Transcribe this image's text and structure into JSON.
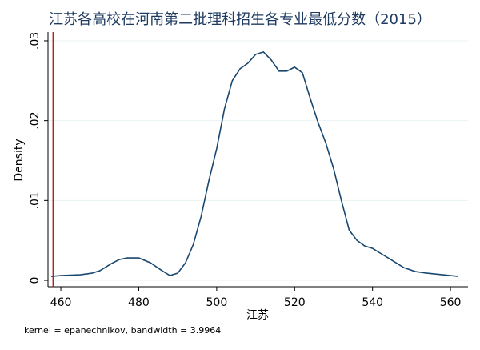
{
  "chart_data": {
    "type": "line",
    "title": "江苏各高校在河南第二批理科招生各专业最低分数（2015）",
    "xlabel": "江苏",
    "ylabel": "Density",
    "note": "kernel = epanechnikov, bandwidth = 3.9964",
    "x": [
      457.5,
      460,
      465,
      468,
      470,
      473,
      475,
      477,
      480,
      483,
      486,
      488,
      490,
      492,
      494,
      496,
      498,
      500,
      502,
      504,
      506,
      508,
      510,
      512,
      514,
      516,
      518,
      520,
      522,
      524,
      526,
      528,
      530,
      532,
      534,
      536,
      538,
      540,
      542,
      545,
      548,
      551,
      554,
      558,
      562
    ],
    "series": [
      {
        "color": "#1a476f",
        "values": [
          0.0005,
          0.0006,
          0.0007,
          0.0009,
          0.0012,
          0.0021,
          0.0026,
          0.0028,
          0.0028,
          0.0022,
          0.0012,
          0.0006,
          0.0009,
          0.0022,
          0.0045,
          0.008,
          0.0125,
          0.0165,
          0.0215,
          0.025,
          0.0265,
          0.0272,
          0.0283,
          0.0286,
          0.0276,
          0.0262,
          0.0262,
          0.0267,
          0.026,
          0.0228,
          0.0198,
          0.0172,
          0.014,
          0.01,
          0.0063,
          0.005,
          0.0043,
          0.004,
          0.0034,
          0.0025,
          0.0016,
          0.0011,
          0.0009,
          0.0007,
          0.0005
        ]
      }
    ],
    "xline": {
      "value": 458,
      "color": "#b22222"
    },
    "xlim": [
      456.7,
      564.5
    ],
    "xticks": [
      460,
      480,
      500,
      520,
      540,
      560
    ],
    "ylim": [
      -0.0008,
      0.0311
    ],
    "yticks": [
      0,
      {
        "value": 0.01,
        "label": ".01"
      },
      {
        "value": 0.02,
        "label": ".02"
      },
      {
        "value": 0.03,
        "label": ".03"
      }
    ],
    "grid": true
  }
}
